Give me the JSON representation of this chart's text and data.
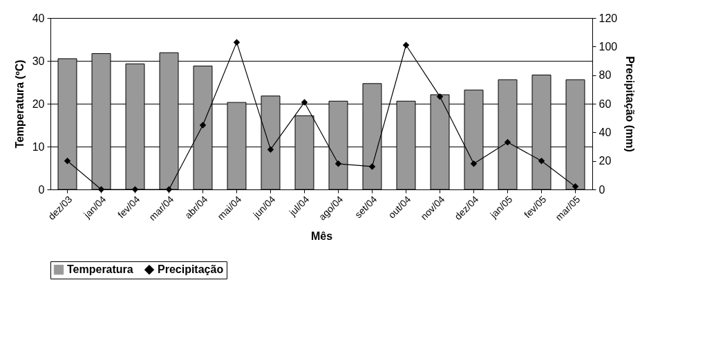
{
  "chart_data": {
    "type": "bar",
    "xlabel": "Mês",
    "ylabel": "Temperatura (ºC)",
    "y2label": "Precipitação (mm)",
    "categories": [
      "dez/03",
      "jan/04",
      "fev/04",
      "mar/04",
      "abr/04",
      "mai/04",
      "jun/04",
      "jul/04",
      "ago/04",
      "set/04",
      "out/04",
      "nov/04",
      "dez/04",
      "jan/05",
      "fev/05",
      "mar/05"
    ],
    "series": [
      {
        "name": "Temperatura",
        "color": "#999999",
        "values": [
          30.5,
          31.7,
          29.3,
          31.9,
          28.8,
          20.3,
          21.8,
          17.2,
          20.6,
          24.7,
          20.6,
          22.1,
          23.2,
          25.6,
          26.7,
          25.6
        ]
      },
      {
        "name": "Precipitação",
        "type": "line",
        "axis": "y2",
        "color": "#000000",
        "values": [
          20,
          0,
          0,
          0,
          45,
          103,
          28,
          61,
          18,
          16,
          101,
          65,
          18,
          33,
          20,
          2
        ]
      }
    ],
    "ylim": [
      0,
      40
    ],
    "yticks": [
      0,
      10,
      20,
      30,
      40
    ],
    "y2lim": [
      0,
      120
    ],
    "y2ticks": [
      0,
      20,
      40,
      60,
      80,
      100,
      120
    ],
    "grid": "y",
    "legend": "bottom",
    "marker": "diamond",
    "line_style": "solid"
  }
}
